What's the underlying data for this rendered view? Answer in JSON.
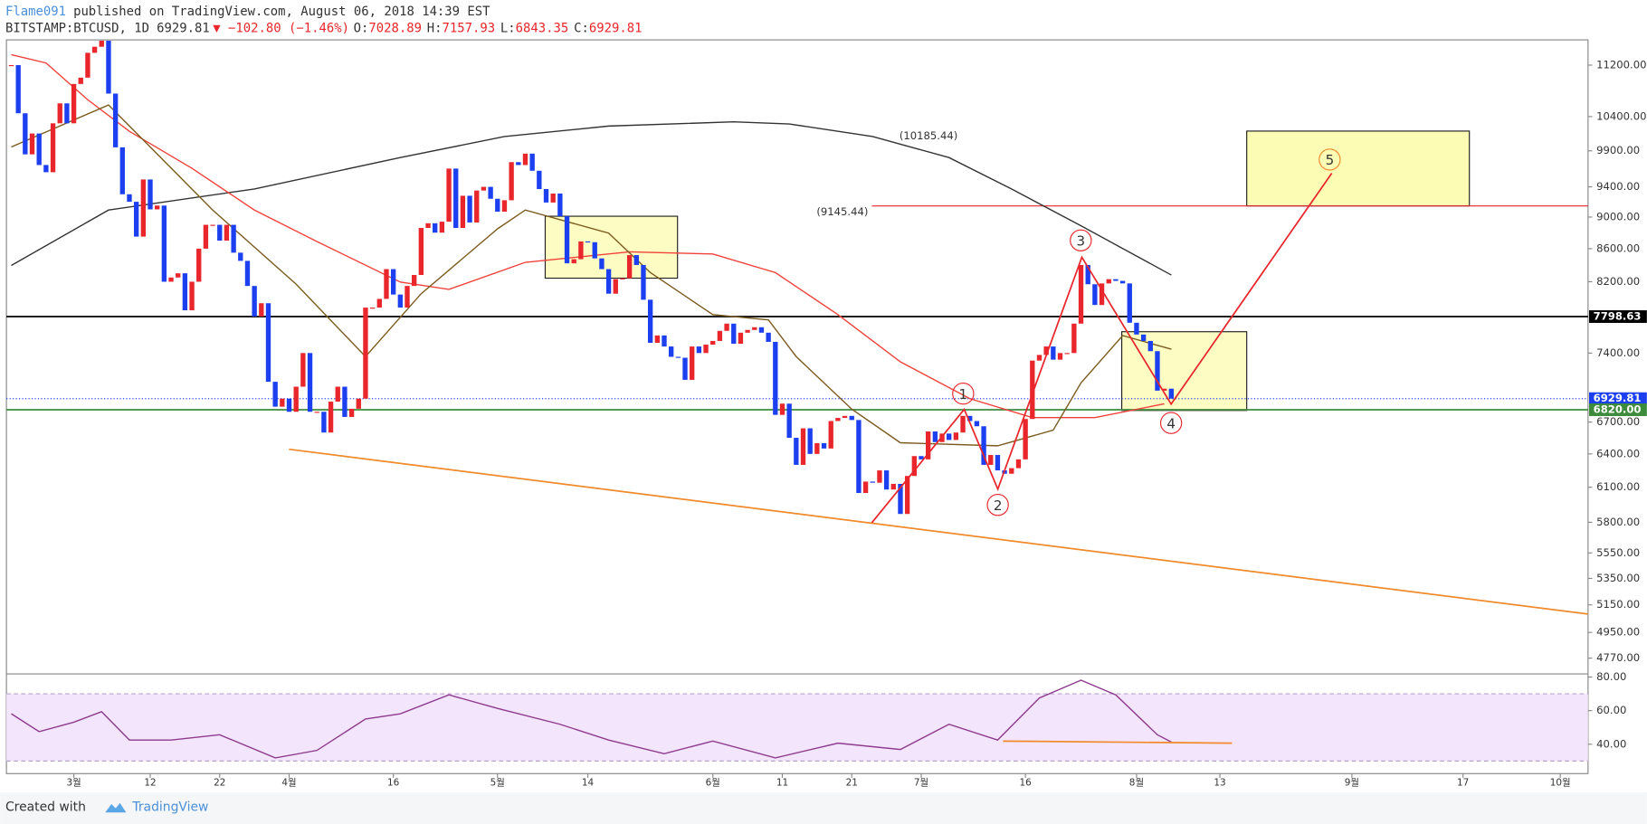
{
  "header": {
    "publisher": "Flame091",
    "published_text": "published on TradingView.com, August 06, 2018 14:39 EST",
    "symbol": "BITSTAMP:BTCUSD, 1D",
    "last": 6929.81,
    "change": "▼ −102.80 (−1.46%)",
    "ohlc": [
      {
        "label": "O:",
        "value": 7028.89
      },
      {
        "label": "H:",
        "value": 7157.93
      },
      {
        "label": "L:",
        "value": 6843.35
      },
      {
        "label": "C:",
        "value": 6929.81
      }
    ]
  },
  "footer": {
    "created": "Created with",
    "brand": "TradingView"
  },
  "chart_data": [
    {
      "type": "candlestick",
      "log_scale": true,
      "up_color": "#e8262b",
      "down_color": "#1c3ff0",
      "xlim": [
        -9.7,
        218
      ],
      "xticks": [
        {
          "value": 0,
          "label": "3월"
        },
        {
          "value": 11,
          "label": "12"
        },
        {
          "value": 21,
          "label": "22"
        },
        {
          "value": 31,
          "label": "4월"
        },
        {
          "value": 46,
          "label": "16"
        },
        {
          "value": 61,
          "label": "5월"
        },
        {
          "value": 74,
          "label": "14"
        },
        {
          "value": 92,
          "label": "6월"
        },
        {
          "value": 102,
          "label": "11"
        },
        {
          "value": 112,
          "label": "21"
        },
        {
          "value": 122,
          "label": "7월"
        },
        {
          "value": 137,
          "label": "16"
        },
        {
          "value": 153,
          "label": "8월"
        },
        {
          "value": 165,
          "label": "13"
        },
        {
          "value": 184,
          "label": "9월"
        },
        {
          "value": 200,
          "label": "17"
        },
        {
          "value": 214,
          "label": "10월"
        }
      ],
      "ylim": [
        4663,
        11614
      ],
      "yticks": [
        {
          "value": 11200,
          "label": "11200.00"
        },
        {
          "value": 10400,
          "label": "10400.00"
        },
        {
          "value": 9900,
          "label": "9900.00"
        },
        {
          "value": 9400,
          "label": "9400.00"
        },
        {
          "value": 9000,
          "label": "9000.00"
        },
        {
          "value": 8600,
          "label": "8600.00"
        },
        {
          "value": 8200,
          "label": "8200.00"
        },
        {
          "value": 7400,
          "label": "7400.00"
        },
        {
          "value": 6700,
          "label": "6700.00"
        },
        {
          "value": 6400,
          "label": "6400.00"
        },
        {
          "value": 6100,
          "label": "6100.00"
        },
        {
          "value": 5800,
          "label": "5800.00"
        },
        {
          "value": 5550,
          "label": "5550.00"
        },
        {
          "value": 5350,
          "label": "5350.00"
        },
        {
          "value": 5150,
          "label": "5150.00"
        },
        {
          "value": 4950,
          "label": "4950.00"
        },
        {
          "value": 4770,
          "label": "4770.00"
        }
      ],
      "x": [
        -9,
        -8,
        -7,
        -6,
        -5,
        -4,
        -3,
        -2,
        -1,
        0,
        1,
        2,
        3,
        4,
        5,
        6,
        7,
        8,
        9,
        10,
        11,
        12,
        13,
        14,
        15,
        16,
        17,
        18,
        19,
        20,
        21,
        22,
        23,
        24,
        25,
        26,
        27,
        28,
        29,
        30,
        31,
        32,
        33,
        34,
        35,
        36,
        37,
        38,
        39,
        40,
        41,
        42,
        43,
        44,
        45,
        46,
        47,
        48,
        49,
        50,
        51,
        52,
        53,
        54,
        55,
        56,
        57,
        58,
        59,
        60,
        61,
        62,
        63,
        64,
        65,
        66,
        67,
        68,
        69,
        70,
        71,
        72,
        73,
        74,
        75,
        76,
        77,
        78,
        79,
        80,
        81,
        82,
        83,
        84,
        85,
        86,
        87,
        88,
        89,
        90,
        91,
        92,
        93,
        94,
        95,
        96,
        97,
        98,
        99,
        100,
        101,
        102,
        103,
        104,
        105,
        106,
        107,
        108,
        109,
        110,
        111,
        112,
        113,
        114,
        115,
        116,
        117,
        118,
        119,
        120,
        121,
        122,
        123,
        124,
        125,
        126,
        127,
        128,
        129,
        130,
        131,
        132,
        133,
        134,
        135,
        136,
        137,
        138,
        139,
        140,
        141,
        142,
        143,
        144,
        145,
        146,
        147,
        148,
        149,
        150,
        151,
        152,
        153,
        154,
        155,
        156,
        157,
        158
      ],
      "close": [
        11200,
        10450,
        9850,
        10150,
        9700,
        9600,
        10300,
        10600,
        10300,
        10900,
        11000,
        11400,
        11500,
        11600,
        10750,
        9950,
        9300,
        9200,
        8750,
        9500,
        9100,
        9150,
        8200,
        8250,
        8300,
        7870,
        8200,
        8600,
        8900,
        8900,
        8700,
        8900,
        8550,
        8450,
        8150,
        7800,
        7950,
        7100,
        6850,
        6930,
        6800,
        7050,
        7400,
        6800,
        6800,
        6600,
        6900,
        7050,
        6750,
        6830,
        6930,
        7900,
        7900,
        8000,
        8350,
        8050,
        7900,
        8150,
        8280,
        8860,
        8920,
        8800,
        8940,
        9650,
        8860,
        9280,
        8930,
        9350,
        9400,
        9240,
        9070,
        9220,
        9740,
        9700,
        9860,
        9620,
        9370,
        9190,
        9310,
        9010,
        8420,
        8470,
        8690,
        8680,
        8480,
        8350,
        8060,
        8230,
        8240,
        8520,
        8400,
        7990,
        7510,
        7590,
        7470,
        7360,
        7350,
        7120,
        7470,
        7400,
        7490,
        7530,
        7640,
        7720,
        7500,
        7620,
        7650,
        7680,
        7620,
        7520,
        6770,
        6880,
        6550,
        6300,
        6640,
        6400,
        6500,
        6450,
        6710,
        6740,
        6760,
        6720,
        6050,
        6150,
        6140,
        6250,
        6080,
        6130,
        5870,
        6200,
        6380,
        6350,
        6610,
        6510,
        6590,
        6530,
        6600,
        6760,
        6710,
        6660,
        6300,
        6390,
        6250,
        6220,
        6270,
        6350,
        6730,
        7320,
        7380,
        7470,
        7330,
        7400,
        7400,
        7720,
        8400,
        8170,
        7930,
        8180,
        8230,
        8210,
        8180,
        7730,
        7600,
        7530,
        7420,
        7010,
        7030,
        6929.81
      ],
      "overlays": [
        {
          "color": "#333333",
          "x": [
            -9,
            5,
            26,
            47,
            62,
            77,
            95,
            103,
            115,
            126,
            135,
            145,
            158
          ],
          "values": [
            8394,
            9091,
            9371,
            9805,
            10106,
            10259,
            10321,
            10290,
            10106,
            9805,
            9371,
            8888,
            8280
          ]
        },
        {
          "color": "#f0423a",
          "x": [
            -9,
            -4,
            2,
            8,
            17,
            26,
            35,
            47,
            54,
            65,
            80,
            92,
            101,
            110,
            119,
            129,
            138,
            147,
            157
          ],
          "values": [
            11370,
            11234,
            10655,
            10182,
            9655,
            9091,
            8688,
            8196,
            8110,
            8432,
            8560,
            8534,
            8308,
            7821,
            7307,
            6930,
            6744,
            6744,
            6878
          ]
        },
        {
          "color": "#7b5a1e",
          "x": [
            -9,
            5,
            11,
            20,
            32,
            42,
            50,
            61,
            65,
            77,
            83,
            92,
            100,
            104,
            112,
            119,
            133,
            141,
            145,
            151,
            158
          ],
          "values": [
            9955,
            10575,
            9955,
            9091,
            8171,
            7362,
            8060,
            8848,
            9091,
            8794,
            8308,
            7821,
            7761,
            7362,
            6826,
            6504,
            6475,
            6623,
            7089,
            7588,
            7441
          ]
        }
      ],
      "levels": [
        {
          "value": 7798.63,
          "color": "#000000",
          "dash": "none"
        },
        {
          "value": 6929.81,
          "color": "#1c3ff0",
          "dash": "1 2"
        },
        {
          "value": {
            "value": 6820,
            "label": "6820.00"
          },
          "color": "#3d8b3d",
          "dash": "none"
        }
      ],
      "target_note": {
        "value": 10185.44,
        "label": "(10185.44)"
      },
      "target_line": {
        "value": 9145.44,
        "label": "(9145.44)"
      },
      "waves": [
        "1",
        "2",
        "3",
        "4",
        "5"
      ]
    },
    {
      "type": "line",
      "color": "#8e3a8e",
      "band": [
        30,
        70
      ],
      "band_color": "#f3e5fb",
      "ylim": [
        22.5,
        81.25
      ],
      "yticks": [
        {
          "value": 80,
          "label": "80.00"
        },
        {
          "value": 60,
          "label": "60.00"
        },
        {
          "value": 40,
          "label": "40.00"
        }
      ],
      "x": [
        -9,
        -5,
        0,
        4,
        8,
        14,
        21,
        29,
        35,
        42,
        47,
        54,
        61,
        70,
        77,
        85,
        92,
        101,
        110,
        119,
        126,
        133,
        139,
        145,
        150,
        156,
        158
      ],
      "values": [
        58.1,
        47.5,
        53.1,
        59.4,
        42.5,
        42.5,
        45.6,
        31.9,
        36.3,
        55,
        58.1,
        69.4,
        61.3,
        51.9,
        42.5,
        34.4,
        41.9,
        31.9,
        40.6,
        36.9,
        51.9,
        42.5,
        67.5,
        78.1,
        69.4,
        45.6,
        41.3
      ]
    }
  ]
}
